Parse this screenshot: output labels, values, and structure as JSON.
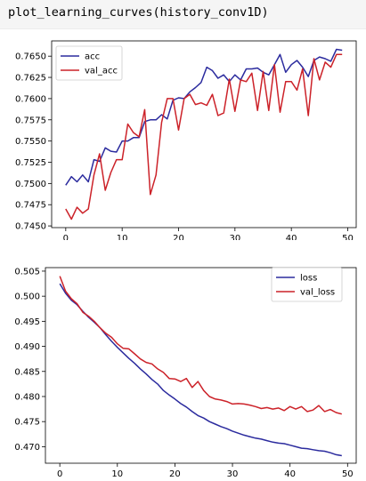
{
  "code_cell": {
    "text": "plot_learning_curves(history_conv1D)"
  },
  "colors": {
    "train": "#2b2b9e",
    "val": "#cc2229",
    "cell_bg": "#f5f5f5"
  },
  "chart_data": [
    {
      "type": "line",
      "title": "",
      "xlabel": "",
      "ylabel": "",
      "xlim": [
        -2.5,
        51.5
      ],
      "ylim": [
        0.7448,
        0.7668
      ],
      "xticks": [
        0,
        10,
        20,
        30,
        40,
        50
      ],
      "yticks": [
        0.745,
        0.7475,
        0.75,
        0.7525,
        0.755,
        0.7575,
        0.76,
        0.7625,
        0.765
      ],
      "ytick_format": 4,
      "legend_position": "top-left",
      "grid": false,
      "x": [
        0,
        1,
        2,
        3,
        4,
        5,
        6,
        7,
        8,
        9,
        10,
        11,
        12,
        13,
        14,
        15,
        16,
        17,
        18,
        19,
        20,
        21,
        22,
        23,
        24,
        25,
        26,
        27,
        28,
        29,
        30,
        31,
        32,
        33,
        34,
        35,
        36,
        37,
        38,
        39,
        40,
        41,
        42,
        43,
        44,
        45,
        46,
        47,
        48,
        49
      ],
      "series": [
        {
          "name": "acc",
          "color": "#2b2b9e",
          "values": [
            0.7498,
            0.7508,
            0.7502,
            0.751,
            0.7502,
            0.7528,
            0.7526,
            0.7542,
            0.7538,
            0.7537,
            0.755,
            0.755,
            0.7554,
            0.7554,
            0.7573,
            0.7575,
            0.7575,
            0.7581,
            0.7576,
            0.7598,
            0.7601,
            0.76,
            0.7608,
            0.7613,
            0.7619,
            0.7637,
            0.7633,
            0.7624,
            0.7628,
            0.762,
            0.7628,
            0.7622,
            0.7635,
            0.7635,
            0.7636,
            0.7631,
            0.7628,
            0.764,
            0.7652,
            0.7631,
            0.764,
            0.7645,
            0.7637,
            0.7626,
            0.7645,
            0.7649,
            0.7647,
            0.7644,
            0.7658,
            0.7657
          ]
        },
        {
          "name": "val_acc",
          "color": "#cc2229",
          "values": [
            0.747,
            0.7458,
            0.7472,
            0.7465,
            0.747,
            0.751,
            0.7535,
            0.7492,
            0.7513,
            0.7528,
            0.7528,
            0.757,
            0.756,
            0.7555,
            0.7587,
            0.7487,
            0.751,
            0.7572,
            0.76,
            0.76,
            0.7563,
            0.76,
            0.7605,
            0.7593,
            0.7595,
            0.7592,
            0.7605,
            0.758,
            0.7583,
            0.7623,
            0.7585,
            0.7622,
            0.762,
            0.763,
            0.7586,
            0.7632,
            0.7586,
            0.764,
            0.7584,
            0.762,
            0.762,
            0.761,
            0.7635,
            0.758,
            0.7647,
            0.7622,
            0.7643,
            0.7637,
            0.7652,
            0.7652
          ]
        }
      ]
    },
    {
      "type": "line",
      "title": "",
      "xlabel": "",
      "ylabel": "",
      "xlim": [
        -2.5,
        51.5
      ],
      "ylim": [
        0.4667,
        0.5057
      ],
      "xticks": [
        0,
        10,
        20,
        30,
        40,
        50
      ],
      "yticks": [
        0.47,
        0.475,
        0.48,
        0.485,
        0.49,
        0.495,
        0.5,
        0.505
      ],
      "ytick_format": 3,
      "legend_position": "top-right",
      "grid": false,
      "x": [
        0,
        1,
        2,
        3,
        4,
        5,
        6,
        7,
        8,
        9,
        10,
        11,
        12,
        13,
        14,
        15,
        16,
        17,
        18,
        19,
        20,
        21,
        22,
        23,
        24,
        25,
        26,
        27,
        28,
        29,
        30,
        31,
        32,
        33,
        34,
        35,
        36,
        37,
        38,
        39,
        40,
        41,
        42,
        43,
        44,
        45,
        46,
        47,
        48,
        49
      ],
      "series": [
        {
          "name": "loss",
          "color": "#2b2b9e",
          "values": [
            0.5025,
            0.5006,
            0.4992,
            0.4983,
            0.497,
            0.4958,
            0.4948,
            0.4937,
            0.4923,
            0.491,
            0.4898,
            0.4887,
            0.4876,
            0.4866,
            0.4855,
            0.4845,
            0.4834,
            0.4825,
            0.4812,
            0.4803,
            0.4795,
            0.4786,
            0.4779,
            0.477,
            0.4762,
            0.4757,
            0.475,
            0.4745,
            0.474,
            0.4736,
            0.4731,
            0.4727,
            0.4723,
            0.472,
            0.4717,
            0.4715,
            0.4712,
            0.4709,
            0.4707,
            0.4706,
            0.4703,
            0.47,
            0.4697,
            0.4696,
            0.4694,
            0.4692,
            0.4691,
            0.4688,
            0.4684,
            0.4682
          ]
        },
        {
          "name": "val_loss",
          "color": "#cc2229",
          "values": [
            0.504,
            0.501,
            0.4995,
            0.4985,
            0.4968,
            0.496,
            0.495,
            0.4937,
            0.4926,
            0.4918,
            0.4905,
            0.4896,
            0.4895,
            0.4885,
            0.4875,
            0.4868,
            0.4865,
            0.4855,
            0.4848,
            0.4836,
            0.4835,
            0.483,
            0.4836,
            0.4818,
            0.483,
            0.4812,
            0.48,
            0.4795,
            0.4793,
            0.479,
            0.4785,
            0.4786,
            0.4785,
            0.4783,
            0.478,
            0.4776,
            0.4778,
            0.4775,
            0.4777,
            0.4772,
            0.478,
            0.4775,
            0.478,
            0.477,
            0.4773,
            0.4782,
            0.477,
            0.4774,
            0.4768,
            0.4765
          ]
        }
      ]
    }
  ]
}
